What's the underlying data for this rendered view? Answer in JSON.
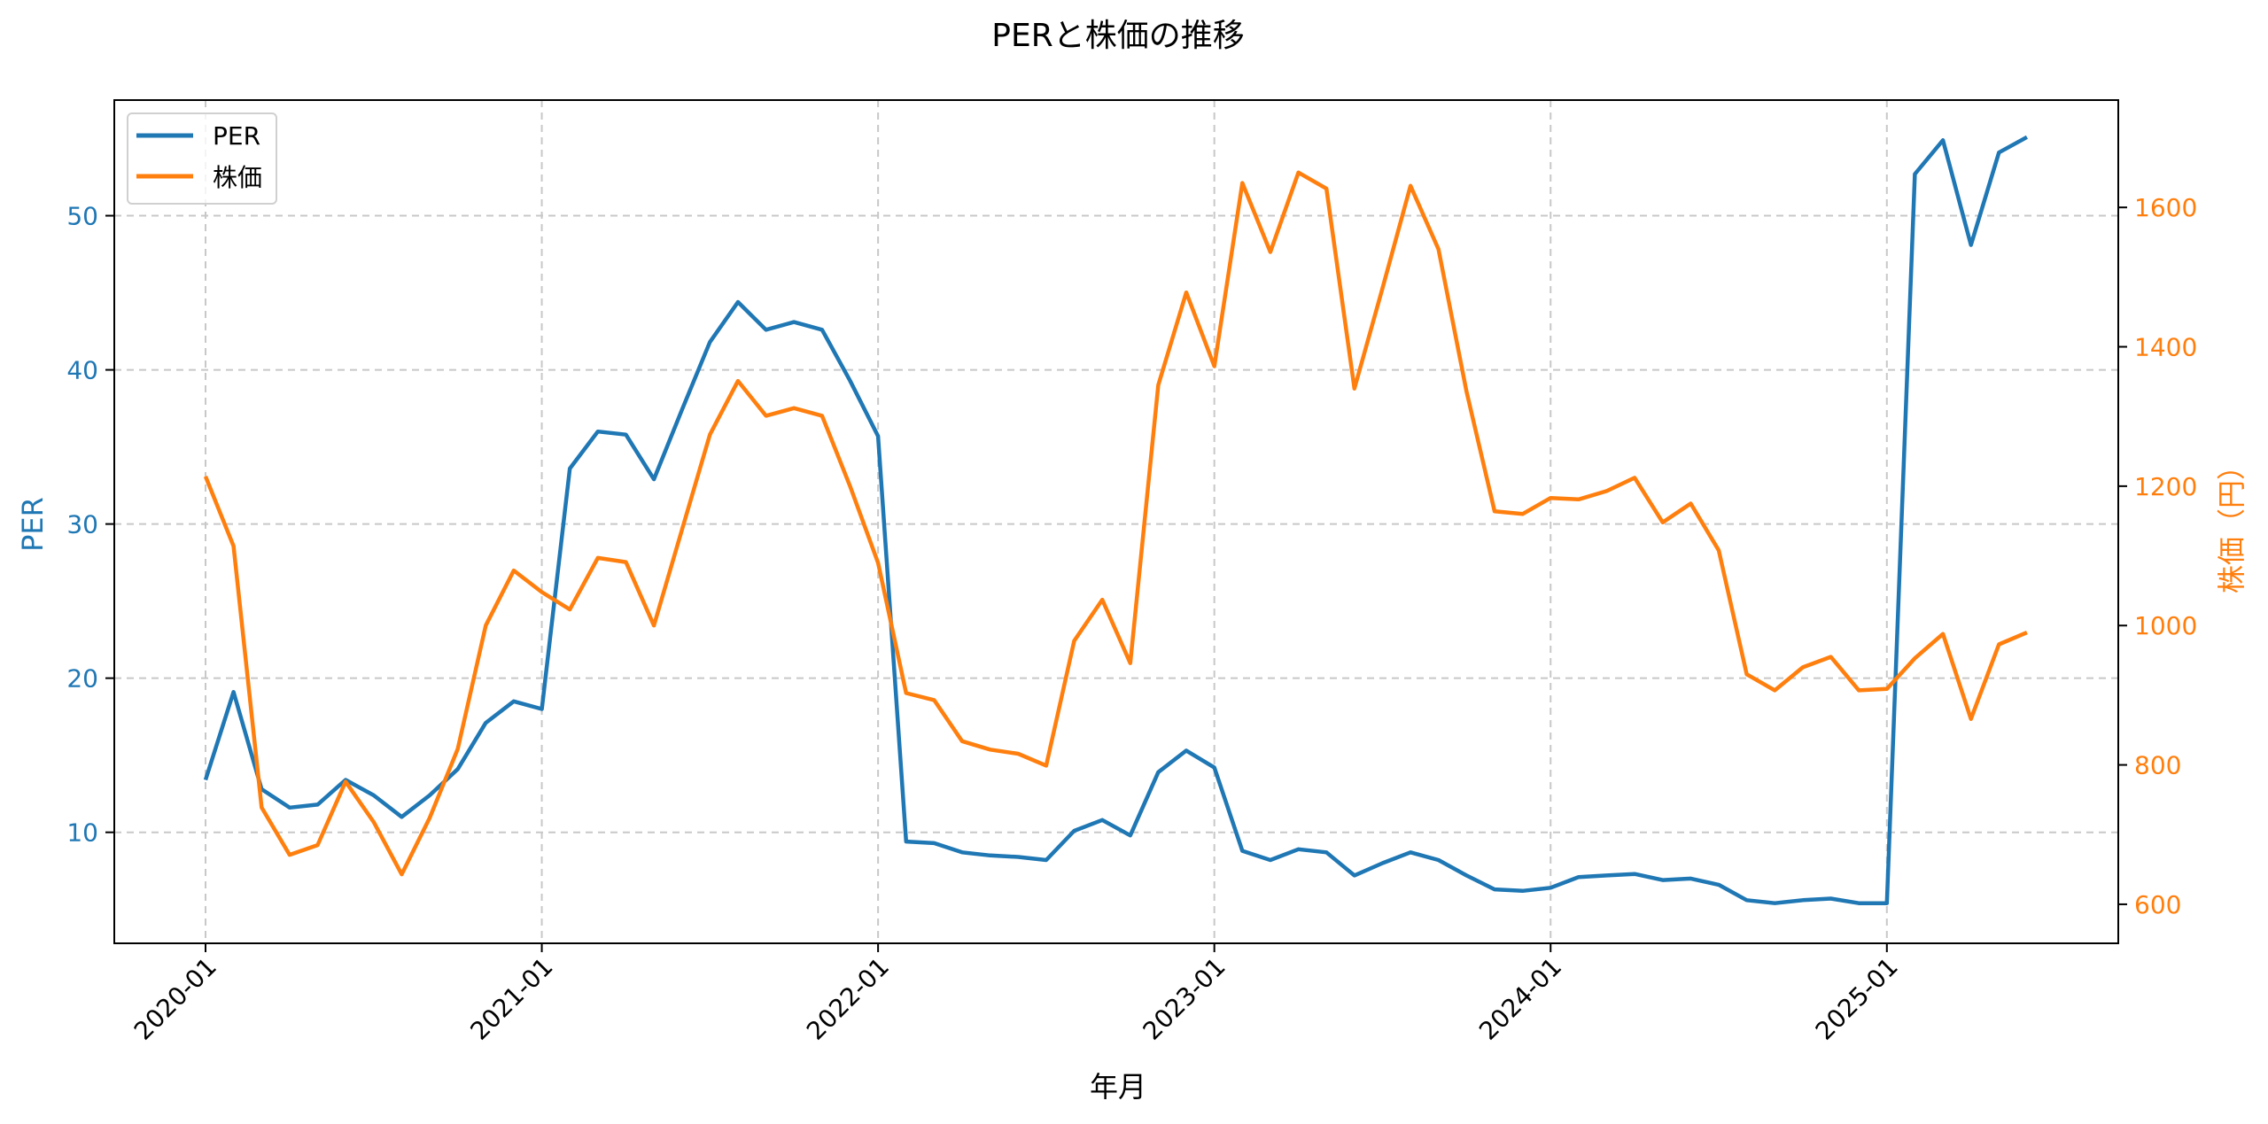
{
  "chart_data": {
    "type": "line",
    "title": "PERと株価の推移",
    "xlabel": "年月",
    "ylabel": "PER",
    "ylabel_right": "株価（円）",
    "x": [
      "2020-01",
      "2020-02",
      "2020-03",
      "2020-04",
      "2020-05",
      "2020-06",
      "2020-07",
      "2020-08",
      "2020-09",
      "2020-10",
      "2020-11",
      "2020-12",
      "2021-01",
      "2021-02",
      "2021-03",
      "2021-04",
      "2021-05",
      "2021-06",
      "2021-07",
      "2021-08",
      "2021-09",
      "2021-10",
      "2021-11",
      "2021-12",
      "2022-01",
      "2022-02",
      "2022-03",
      "2022-04",
      "2022-05",
      "2022-06",
      "2022-07",
      "2022-08",
      "2022-09",
      "2022-10",
      "2022-11",
      "2022-12",
      "2023-01",
      "2023-02",
      "2023-03",
      "2023-04",
      "2023-05",
      "2023-06",
      "2023-07",
      "2023-08",
      "2023-09",
      "2023-10",
      "2023-11",
      "2023-12",
      "2024-01",
      "2024-02",
      "2024-03",
      "2024-04",
      "2024-05",
      "2024-06",
      "2024-07",
      "2024-08",
      "2024-09",
      "2024-10",
      "2024-11",
      "2024-12",
      "2025-01",
      "2025-02",
      "2025-03",
      "2025-04",
      "2025-05",
      "2025-06"
    ],
    "x_ticks": [
      "2020-01",
      "2021-01",
      "2022-01",
      "2023-01",
      "2024-01",
      "2025-01"
    ],
    "series": [
      {
        "name": "PER",
        "axis": "left",
        "color": "#1f77b4",
        "values": [
          13.4,
          19.1,
          12.8,
          11.6,
          11.8,
          13.4,
          12.4,
          11.0,
          12.4,
          14.1,
          17.1,
          18.5,
          18.0,
          33.6,
          36.0,
          35.8,
          32.9,
          37.4,
          41.8,
          44.4,
          42.6,
          43.1,
          42.6,
          39.3,
          35.7,
          9.4,
          9.3,
          8.7,
          8.5,
          8.4,
          8.2,
          10.1,
          10.8,
          9.8,
          13.9,
          15.3,
          14.2,
          8.8,
          8.2,
          8.9,
          8.7,
          7.2,
          8.0,
          8.7,
          8.2,
          7.2,
          6.3,
          6.2,
          6.4,
          7.1,
          7.2,
          7.3,
          6.9,
          7.0,
          6.6,
          5.6,
          5.4,
          5.6,
          5.7,
          5.4,
          5.4,
          52.7,
          54.9,
          48.1,
          54.1,
          55.1
        ]
      },
      {
        "name": "株価",
        "axis": "right",
        "color": "#ff7f0e",
        "values": [
          1214,
          1114,
          739,
          671,
          685,
          776,
          718,
          643,
          724,
          823,
          1000,
          1079,
          1048,
          1023,
          1097,
          1091,
          1000,
          1137,
          1274,
          1351,
          1301,
          1312,
          1301,
          1200,
          1090,
          903,
          893,
          834,
          822,
          816,
          799,
          978,
          1037,
          946,
          1345,
          1478,
          1372,
          1635,
          1536,
          1650,
          1627,
          1340,
          1484,
          1631,
          1540,
          1336,
          1164,
          1160,
          1183,
          1181,
          1193,
          1212,
          1148,
          1175,
          1108,
          930,
          907,
          940,
          955,
          907,
          909,
          953,
          988,
          866,
          973,
          990
        ]
      }
    ],
    "ylim": [
      2.8,
      57.5
    ],
    "ylim_right": [
      544,
      1754
    ],
    "yticks_left": [
      10,
      20,
      30,
      40,
      50
    ],
    "yticks_right": [
      600,
      800,
      1000,
      1200,
      1400,
      1600
    ],
    "grid": true,
    "legend_position": "upper left"
  },
  "legend": {
    "items": [
      "PER",
      "株価"
    ]
  }
}
